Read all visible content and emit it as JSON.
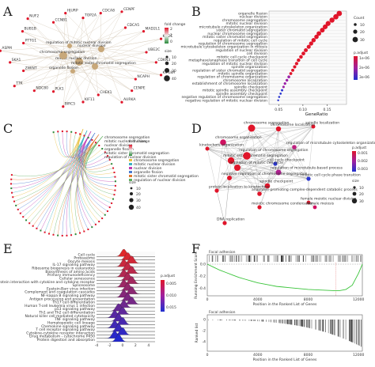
{
  "panels": {
    "A": {
      "label": "A",
      "center_terms": [
        "regulation of mitotic nuclear division",
        "nuclear division",
        "mitotic nuclear division",
        "organelle fission",
        "mitotic sister chromatid segregation",
        "chromosome segregation"
      ],
      "genes": [
        "TOP2A",
        "CDCA8",
        "CENPF",
        "CDCA5",
        "MAD2L1",
        "KIF2C",
        "UBE2C",
        "CDKN3",
        "KIF18A",
        "NCAPH",
        "CENPE",
        "AURKA",
        "CHEK1",
        "KIF11",
        "BIRC5",
        "PLK1",
        "NDC80",
        "TTK",
        "ZWINT",
        "SKA1",
        "ASPM",
        "PTTG1",
        "BUB1B",
        "NUF2",
        "CCNB1",
        "HJURP"
      ],
      "legend": {
        "fold_title": "fold change",
        "fold_ticks": [
          "2",
          "1",
          "0"
        ],
        "size_title": "size",
        "size_ticks": [
          "10",
          "20",
          "30",
          "40"
        ]
      }
    },
    "B": {
      "label": "B",
      "chart_data": {
        "type": "scatter",
        "xlabel": "GeneRatio",
        "xticks": [
          "0.05",
          "0.10",
          "0.15"
        ],
        "xlim": [
          0.03,
          0.19
        ],
        "categories": [
          "organelle fission",
          "nuclear division",
          "chromosome segregation",
          "mitotic nuclear division",
          "microtubule cytoskeleton organization",
          "sister chromatid segregation",
          "nuclear chromosome segregation",
          "mitotic sister chromatid segregation",
          "regulation of mitotic cell cycle",
          "regulation of chromosome segregation",
          "microtubule cytoskeleton organization in mitosis",
          "regulation of nuclear division",
          "cell division",
          "mitotic cell cycle checkpoint",
          "metaphase/anaphase transition of cell cycle",
          "regulation of mitotic nuclear division",
          "spindle organization",
          "regulation of sister chromatid segregation",
          "mitotic spindle organization",
          "regulation of chromosome organization",
          "chromosome localization",
          "establishment of chromosome localization",
          "spindle checkpoint",
          "mitotic spindle assembly checkpoint",
          "spindle assembly checkpoint",
          "negative regulation of chromosome segregation",
          "negative regulation of mitotic nuclear division"
        ],
        "x": [
          0.175,
          0.168,
          0.16,
          0.152,
          0.146,
          0.14,
          0.133,
          0.128,
          0.122,
          0.117,
          0.112,
          0.106,
          0.101,
          0.096,
          0.091,
          0.087,
          0.083,
          0.079,
          0.075,
          0.071,
          0.067,
          0.063,
          0.06,
          0.057,
          0.054,
          0.051,
          0.049
        ],
        "legend": {
          "count_title": "Count",
          "count_ticks": [
            "10",
            "20",
            "30"
          ],
          "color_title": "p.adjust",
          "color_ticks": [
            "1e-06",
            "2e-06",
            "3e-06"
          ]
        }
      }
    },
    "C": {
      "label": "C",
      "legend_title": "fold change",
      "legend_items": [
        "chromosome segregation",
        "mitotic nuclear division",
        "nuclear division",
        "organelle fission",
        "mitotic sister chromatid segregation",
        "regulation of nuclear division"
      ],
      "size_title": "size",
      "size_ticks": [
        "10",
        "20",
        "30",
        "40"
      ]
    },
    "D": {
      "label": "D",
      "nodes": [
        "spindle localization",
        "chromosome segregation",
        "chromosome localization",
        "chromosome organization",
        "mitotic sister chromatid segregation",
        "regulation of microtubule cytoskeleton organization",
        "kinetochore organization",
        "regulation of chromosome segregation",
        "cell cycle checkpoint",
        "regulation of microtubule-based process",
        "negative regulation of chromosome segregation",
        "spindle checkpoint",
        "regulation of mitotic cell cycle",
        "mitotic cell cycle phase transition",
        "anaphase-promoting complex-dependent catabolic process",
        "protein localization to kinetochore",
        "female meiotic nuclear division",
        "female meiosis",
        "DNA replication",
        "meiotic chromosome condensation"
      ],
      "legend": {
        "color_title": "p.adjust",
        "color_ticks": [
          "0.001",
          "0.002",
          "0.003"
        ],
        "size_title": "size",
        "size_ticks": [
          "10",
          "20",
          "30"
        ]
      }
    },
    "E": {
      "label": "E",
      "chart_data": {
        "type": "area",
        "categories": [
          "Cell cycle",
          "Proteasome",
          "Oocyte meiosis",
          "IL-17 signaling pathway",
          "Ribosome biogenesis in eukaryotes",
          "Biosynthesis of amino acids",
          "Primary immunodeficiency",
          "Cellular senescence",
          "Viral protein interaction with cytokine and cytokine receptor",
          "Spliceosome",
          "Epstein-Barr virus infection",
          "Complement and coagulation cascades",
          "NF-kappa B signaling pathway",
          "Antigen processing and presentation",
          "Th17 cell differentiation",
          "Human T-cell leukemia virus 1 infection",
          "p53 signaling pathway",
          "Th1 and Th2 cell differentiation",
          "Natural killer cell mediated cytotoxicity",
          "TNF signaling pathway",
          "Hematopoietic cell lineage",
          "Chemokine signaling pathway",
          "T cell receptor signaling pathway",
          "Cytokine-cytokine receptor interaction",
          "Drug metabolism - cytochrome P450",
          "Protein digestion and absorption"
        ],
        "xticks": [
          "-4",
          "-2",
          "0",
          "2",
          "4"
        ],
        "xlim": [
          -4,
          5
        ],
        "legend": {
          "title": "p.adjust",
          "ticks": [
            "0.005",
            "0.010",
            "0.015"
          ]
        }
      }
    },
    "F": {
      "label": "F",
      "chart_data": {
        "type": "line",
        "title_top": "Focal adhesion",
        "ylabel_top": "Running Enrichment Score",
        "yticks_top": [
          "0.0",
          "-0.2",
          "-0.4"
        ],
        "xlabel": "Position in the Ranked List of Genes",
        "xticks": [
          "0",
          "4000",
          "8000",
          "12000"
        ],
        "title_bottom": "Focal adhesion",
        "ylabel_bottom": "Ranked list",
        "yticks_bottom": [
          "0",
          "-2",
          "-4"
        ],
        "x": [
          0,
          500,
          1000,
          1500,
          2000,
          2500,
          3000,
          3500,
          4000,
          4500,
          5000,
          5500,
          6000,
          6500,
          7000,
          7500,
          8000,
          8500,
          9000,
          9500,
          10000,
          10500,
          11000,
          11500,
          12000,
          12300
        ],
        "y": [
          0.0,
          -0.05,
          -0.1,
          -0.14,
          -0.18,
          -0.22,
          -0.25,
          -0.28,
          -0.31,
          -0.33,
          -0.35,
          -0.37,
          -0.38,
          -0.39,
          -0.4,
          -0.41,
          -0.42,
          -0.425,
          -0.43,
          -0.435,
          -0.44,
          -0.44,
          -0.42,
          -0.35,
          -0.15,
          0.0
        ]
      }
    }
  }
}
